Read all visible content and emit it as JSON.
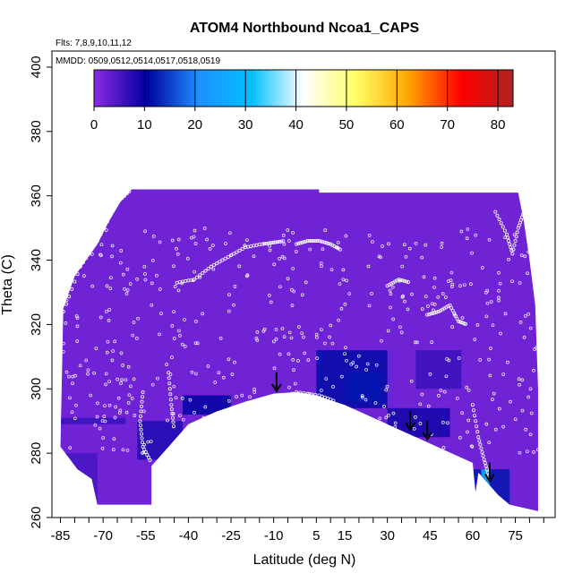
{
  "chart_data": {
    "type": "heatmap",
    "title": "ATOM4 Northbound Ncoa1_CAPS",
    "flights_note": "Flts: 7,8,9,10,11,12",
    "dates_note": "MMDD: 0509,0512,0514,0517,0518,0519",
    "xlabel": "Latitude (deg N)",
    "ylabel": "Theta (C)",
    "xlim": [
      -88,
      89
    ],
    "ylim": [
      260,
      405
    ],
    "x_ticks": [
      -85,
      -70,
      -55,
      -40,
      -25,
      -10,
      5,
      15,
      30,
      45,
      60,
      75
    ],
    "y_ticks": [
      260,
      280,
      300,
      320,
      340,
      360,
      380,
      400
    ],
    "colorbar": {
      "min": 0,
      "max": 83,
      "ticks": [
        0,
        10,
        20,
        30,
        40,
        50,
        60,
        70,
        80
      ],
      "colors": [
        "#8a2be2",
        "#0000a0",
        "#1e90ff",
        "#00bfff",
        "#ffffff",
        "#ffff66",
        "#ffa500",
        "#ff0000",
        "#b22222"
      ]
    },
    "background_value": 2,
    "domain_top_theta": [
      [
        -84,
        325
      ],
      [
        -82,
        330
      ],
      [
        -80,
        335
      ],
      [
        -76,
        340
      ],
      [
        -72,
        345
      ],
      [
        -68,
        352
      ],
      [
        -64,
        358
      ],
      [
        -60,
        362
      ],
      [
        6,
        362
      ],
      [
        6,
        361
      ],
      [
        76,
        361
      ],
      [
        78,
        352
      ],
      [
        80,
        340
      ],
      [
        82,
        326
      ],
      [
        83,
        300
      ],
      [
        83,
        262
      ]
    ],
    "domain_bottom_theta": [
      [
        -85,
        282
      ],
      [
        -79,
        275
      ],
      [
        -74,
        272
      ],
      [
        -72,
        264
      ],
      [
        -53,
        264
      ],
      [
        -53,
        276
      ],
      [
        -45,
        284
      ],
      [
        -40,
        289
      ],
      [
        -30,
        293
      ],
      [
        -20,
        296
      ],
      [
        -10,
        298.5
      ],
      [
        -2,
        299
      ],
      [
        5,
        298
      ],
      [
        15,
        295
      ],
      [
        25,
        291
      ],
      [
        35,
        287
      ],
      [
        45,
        283
      ],
      [
        55,
        279
      ],
      [
        60,
        277
      ],
      [
        61,
        268
      ],
      [
        62,
        274
      ],
      [
        64,
        272
      ],
      [
        69,
        267
      ],
      [
        73,
        264
      ],
      [
        83,
        262
      ]
    ],
    "enhanced_regions": [
      {
        "lat_min": -58,
        "lat_max": -42,
        "theta_min": 278,
        "theta_max": 290,
        "value": 8
      },
      {
        "lat_min": -42,
        "lat_max": -25,
        "theta_min": 292,
        "theta_max": 298,
        "value": 10
      },
      {
        "lat_min": 5,
        "lat_max": 30,
        "theta_min": 294,
        "theta_max": 312,
        "value": 11
      },
      {
        "lat_min": 15,
        "lat_max": 28,
        "theta_min": 296,
        "theta_max": 305,
        "value": 12
      },
      {
        "lat_min": 30,
        "lat_max": 52,
        "theta_min": 285,
        "theta_max": 294,
        "value": 9
      },
      {
        "lat_min": 40,
        "lat_max": 56,
        "theta_min": 300,
        "theta_max": 312,
        "value": 6
      },
      {
        "lat_min": 60,
        "lat_max": 73,
        "theta_min": 264,
        "theta_max": 275,
        "value": 12
      },
      {
        "lat_min": 63,
        "lat_max": 66,
        "theta_min": 268,
        "theta_max": 275,
        "value": 28
      },
      {
        "lat_min": -85,
        "lat_max": -72,
        "theta_min": 264,
        "theta_max": 280,
        "value": 5
      },
      {
        "lat_min": -85,
        "lat_max": -62,
        "theta_min": 289,
        "theta_max": 291,
        "value": 6
      }
    ],
    "arrows_lat_theta": [
      [
        -9,
        299
      ],
      [
        38,
        287
      ],
      [
        44,
        284
      ],
      [
        66,
        271
      ]
    ],
    "flight_tracks": [
      {
        "points": [
          [
            -84,
            324
          ],
          [
            -78,
            338
          ],
          [
            -72,
            346
          ],
          [
            -65,
            358
          ],
          [
            -60,
            362
          ]
        ]
      },
      {
        "points": [
          [
            -44,
            333
          ],
          [
            -38,
            334
          ],
          [
            -32,
            338
          ],
          [
            -26,
            341
          ],
          [
            -20,
            344
          ],
          [
            -14,
            345
          ],
          [
            -10,
            345.5
          ],
          [
            -6,
            346
          ]
        ]
      },
      {
        "points": [
          [
            -2,
            345
          ],
          [
            2,
            346
          ],
          [
            6,
            346
          ],
          [
            10,
            345
          ],
          [
            14,
            343
          ]
        ]
      },
      {
        "points": [
          [
            30,
            332
          ],
          [
            34,
            334
          ],
          [
            38,
            333
          ]
        ]
      },
      {
        "points": [
          [
            44,
            323
          ],
          [
            48,
            324
          ],
          [
            52,
            326
          ],
          [
            55,
            321
          ],
          [
            58,
            320
          ]
        ]
      },
      {
        "points": [
          [
            68,
            355
          ],
          [
            72,
            348
          ],
          [
            74,
            342
          ],
          [
            76,
            350
          ],
          [
            78,
            355
          ]
        ]
      },
      {
        "points": [
          [
            -56,
            299
          ],
          [
            -57,
            290
          ],
          [
            -56,
            282
          ],
          [
            -53,
            277
          ]
        ]
      },
      {
        "points": [
          [
            -47,
            305
          ],
          [
            -46,
            295
          ],
          [
            -45,
            287
          ]
        ]
      },
      {
        "points": [
          [
            -10,
            296
          ],
          [
            -2,
            299
          ],
          [
            6,
            298
          ],
          [
            12,
            296
          ]
        ]
      },
      {
        "points": [
          [
            60,
            295
          ],
          [
            62,
            285
          ],
          [
            64,
            278
          ],
          [
            66,
            272
          ]
        ]
      }
    ],
    "flight_tracks_scatter_density": 520
  }
}
